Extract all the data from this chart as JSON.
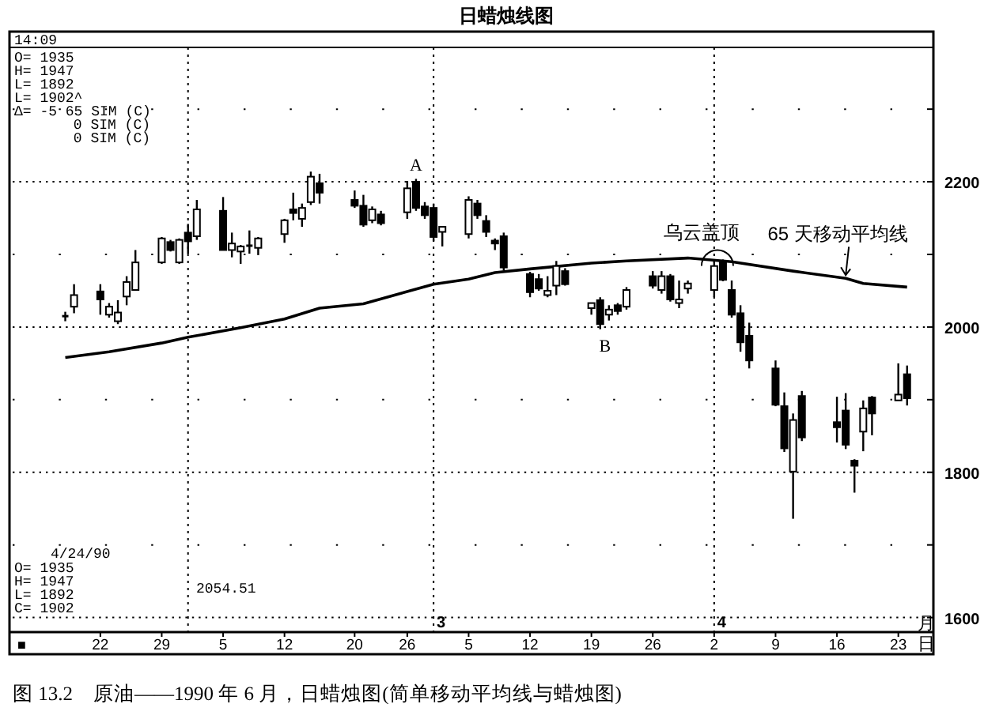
{
  "chart_data": {
    "type": "candlestick",
    "title": "日蜡烛线图",
    "color": "#000000",
    "x": [
      "1990-01-18",
      "1990-01-19",
      "1990-01-22",
      "1990-01-23",
      "1990-01-24",
      "1990-01-25",
      "1990-01-26",
      "1990-01-29",
      "1990-01-30",
      "1990-01-31",
      "1990-02-01",
      "1990-02-02",
      "1990-02-05",
      "1990-02-06",
      "1990-02-07",
      "1990-02-08",
      "1990-02-09",
      "1990-02-12",
      "1990-02-13",
      "1990-02-14",
      "1990-02-15",
      "1990-02-16",
      "1990-02-20",
      "1990-02-21",
      "1990-02-22",
      "1990-02-23",
      "1990-02-26",
      "1990-02-27",
      "1990-02-28",
      "1990-03-01",
      "1990-03-02",
      "1990-03-05",
      "1990-03-06",
      "1990-03-07",
      "1990-03-08",
      "1990-03-09",
      "1990-03-12",
      "1990-03-13",
      "1990-03-14",
      "1990-03-15",
      "1990-03-16",
      "1990-03-19",
      "1990-03-20",
      "1990-03-21",
      "1990-03-22",
      "1990-03-23",
      "1990-03-26",
      "1990-03-27",
      "1990-03-28",
      "1990-03-29",
      "1990-03-30",
      "1990-04-02",
      "1990-04-03",
      "1990-04-04",
      "1990-04-05",
      "1990-04-06",
      "1990-04-09",
      "1990-04-10",
      "1990-04-11",
      "1990-04-12",
      "1990-04-16",
      "1990-04-17",
      "1990-04-18",
      "1990-04-19",
      "1990-04-20",
      "1990-04-23",
      "1990-04-24"
    ],
    "ohlc": [
      [
        2015,
        2021,
        2008,
        2015
      ],
      [
        2028,
        2059,
        2019,
        2044
      ],
      [
        2049,
        2059,
        2017,
        2038
      ],
      [
        2017,
        2033,
        2013,
        2028
      ],
      [
        2008,
        2037,
        2004,
        2020
      ],
      [
        2042,
        2070,
        2030,
        2062
      ],
      [
        2051,
        2106,
        2050,
        2089
      ],
      [
        2089,
        2124,
        2087,
        2122
      ],
      [
        2117,
        2120,
        2104,
        2106
      ],
      [
        2089,
        2122,
        2087,
        2120
      ],
      [
        2130,
        2142,
        2101,
        2118
      ],
      [
        2125,
        2175,
        2120,
        2162
      ],
      [
        2160,
        2179,
        2106,
        2106
      ],
      [
        2106,
        2130,
        2096,
        2115
      ],
      [
        2104,
        2113,
        2087,
        2111
      ],
      [
        2112,
        2133,
        2101,
        2110
      ],
      [
        2109,
        2124,
        2099,
        2122
      ],
      [
        2128,
        2149,
        2116,
        2147
      ],
      [
        2162,
        2185,
        2147,
        2157
      ],
      [
        2149,
        2170,
        2138,
        2164
      ],
      [
        2172,
        2214,
        2168,
        2207
      ],
      [
        2198,
        2211,
        2170,
        2185
      ],
      [
        2175,
        2188,
        2164,
        2167
      ],
      [
        2167,
        2182,
        2138,
        2141
      ],
      [
        2147,
        2166,
        2143,
        2162
      ],
      [
        2155,
        2160,
        2140,
        2143
      ],
      [
        2158,
        2201,
        2149,
        2191
      ],
      [
        2200,
        2204,
        2160,
        2164
      ],
      [
        2166,
        2172,
        2149,
        2154
      ],
      [
        2164,
        2170,
        2118,
        2124
      ],
      [
        2131,
        2138,
        2111,
        2138
      ],
      [
        2128,
        2180,
        2122,
        2175
      ],
      [
        2170,
        2175,
        2149,
        2154
      ],
      [
        2146,
        2154,
        2124,
        2131
      ],
      [
        2119,
        2122,
        2106,
        2115
      ],
      [
        2125,
        2130,
        2078,
        2082
      ],
      [
        2073,
        2076,
        2041,
        2048
      ],
      [
        2066,
        2073,
        2050,
        2053
      ],
      [
        2044,
        2070,
        2041,
        2050
      ],
      [
        2057,
        2091,
        2044,
        2084
      ],
      [
        2077,
        2081,
        2057,
        2059
      ],
      [
        2026,
        2033,
        2017,
        2033
      ],
      [
        2037,
        2041,
        1997,
        2004
      ],
      [
        2017,
        2030,
        2009,
        2024
      ],
      [
        2030,
        2033,
        2017,
        2022
      ],
      [
        2028,
        2055,
        2024,
        2051
      ],
      [
        2070,
        2077,
        2053,
        2057
      ],
      [
        2051,
        2077,
        2046,
        2070
      ],
      [
        2070,
        2073,
        2035,
        2038
      ],
      [
        2033,
        2064,
        2026,
        2038
      ],
      [
        2053,
        2064,
        2046,
        2060
      ],
      [
        2051,
        2091,
        2041,
        2084
      ],
      [
        2089,
        2093,
        2063,
        2065
      ],
      [
        2051,
        2064,
        2013,
        2017
      ],
      [
        2019,
        2030,
        1966,
        1979
      ],
      [
        1988,
        2006,
        1943,
        1954
      ],
      [
        1943,
        1954,
        1891,
        1893
      ],
      [
        1891,
        1910,
        1828,
        1833
      ],
      [
        1801,
        1881,
        1736,
        1872
      ],
      [
        1905,
        1912,
        1843,
        1848
      ],
      [
        1869,
        1904,
        1841,
        1862
      ],
      [
        1885,
        1909,
        1832,
        1838
      ],
      [
        1816,
        1818,
        1772,
        1809
      ],
      [
        1856,
        1899,
        1829,
        1888
      ],
      [
        1903,
        1905,
        1851,
        1881
      ],
      [
        1899,
        1950,
        1899,
        1907
      ],
      [
        1935,
        1947,
        1892,
        1902
      ]
    ],
    "series": [
      {
        "name": "65 天移动平均线",
        "type": "line",
        "color": "#000000",
        "x": [
          "1990-01-18",
          "1990-01-23",
          "1990-01-29",
          "1990-02-01",
          "1990-02-07",
          "1990-02-12",
          "1990-02-16",
          "1990-02-21",
          "1990-03-01",
          "1990-03-05",
          "1990-03-08",
          "1990-03-12",
          "1990-03-19",
          "1990-03-23",
          "1990-03-30",
          "1990-04-04",
          "1990-04-11",
          "1990-04-17",
          "1990-04-19",
          "1990-04-24"
        ],
        "values": [
          1958,
          1966,
          1978,
          1986,
          1999,
          2011,
          2026,
          2032,
          2059,
          2066,
          2075,
          2080,
          2088,
          2091,
          2095,
          2090,
          2077,
          2067,
          2060,
          2055
        ]
      }
    ],
    "xlim": [
      "1990-01-12",
      "1990-04-27"
    ],
    "xticks": [
      {
        "value": "1990-01-22",
        "label": "22"
      },
      {
        "value": "1990-01-29",
        "label": "29"
      },
      {
        "value": "1990-02-05",
        "label": "5"
      },
      {
        "value": "1990-02-12",
        "label": "12"
      },
      {
        "value": "1990-02-20",
        "label": "20"
      },
      {
        "value": "1990-02-26",
        "label": "26"
      },
      {
        "value": "1990-03-05",
        "label": "5"
      },
      {
        "value": "1990-03-12",
        "label": "12"
      },
      {
        "value": "1990-03-19",
        "label": "19"
      },
      {
        "value": "1990-03-26",
        "label": "26"
      },
      {
        "value": "1990-04-02",
        "label": "2"
      },
      {
        "value": "1990-04-09",
        "label": "9"
      },
      {
        "value": "1990-04-16",
        "label": "16"
      },
      {
        "value": "1990-04-23",
        "label": "23"
      }
    ],
    "ylim": [
      1580,
      2385
    ],
    "yticks": [
      1600,
      {
        "value": 1700,
        "label": null
      },
      1800,
      {
        "value": 1900,
        "label": null
      },
      2000,
      {
        "value": 2100,
        "label": null
      },
      2200,
      {
        "value": 2300,
        "label": null
      }
    ],
    "grid": "y",
    "ref_lines": [
      {
        "axis": "x",
        "value": "1990-02-01",
        "line_style": "dotted"
      },
      {
        "axis": "x",
        "value": "1990-03-01",
        "label": "3",
        "line_style": "dotted"
      },
      {
        "axis": "x",
        "value": "1990-04-02",
        "label": "4",
        "line_style": "dotted"
      }
    ],
    "annotations": [
      "14:09",
      "O= 1935",
      "H= 1947",
      "L= 1892",
      "L= 1902^",
      "Δ=     -5 65 SIM (C)",
      "0 SIM (C)",
      "0 SIM (C)",
      "4/24/90",
      "O= 1935",
      "H= 1947",
      "L= 1892",
      "C= 1902",
      "2054.51",
      "■",
      "月",
      "日",
      {
        "text": "A",
        "x": "1990-02-27",
        "y": 2204
      },
      {
        "text": "B",
        "x": "1990-03-20",
        "y": 1997
      },
      {
        "text": "乌云盖顶",
        "x": "1990-04-03",
        "y": 2093
      },
      "图 13.2　原油——1990 年 6 月，日蜡烛图(简单移动平均线与蜡烛图)"
    ]
  }
}
